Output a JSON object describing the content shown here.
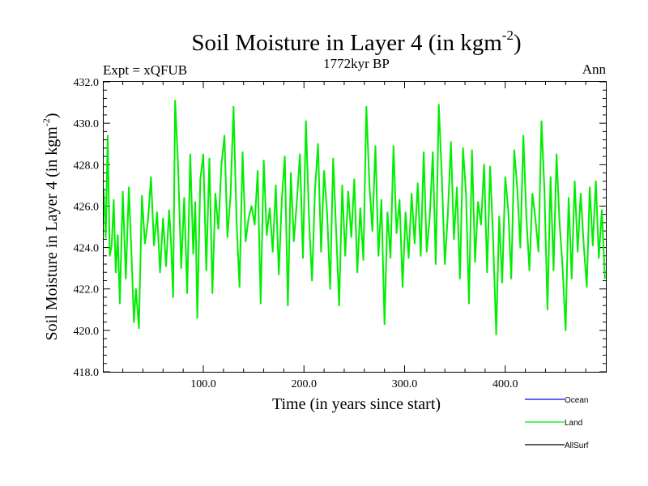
{
  "chart_data": {
    "type": "line",
    "title": "Soil Moisture in Layer 4 (in kgm",
    "title_sup": "-2",
    "title_close": ")",
    "subtitle_left": "Expt = xQFUB",
    "subtitle_center": "1772kyr BP",
    "subtitle_right": "Ann",
    "xlabel": "Time (in years since start)",
    "ylabel": "Soil Moisture in Layer 4 (in kgm",
    "ylabel_sup": "-2",
    "ylabel_close": ")",
    "xlim": [
      1,
      500
    ],
    "ylim": [
      418,
      432
    ],
    "xticks": [
      100,
      200,
      300,
      400
    ],
    "xtick_labels": [
      "100.0",
      "200.0",
      "300.0",
      "400.0"
    ],
    "yticks": [
      418,
      420,
      422,
      424,
      426,
      428,
      430,
      432
    ],
    "ytick_labels": [
      "418.0",
      "420.0",
      "422.0",
      "424.0",
      "426.0",
      "428.0",
      "430.0",
      "432.0"
    ],
    "legend": {
      "placement": "bottom-right",
      "entries": [
        {
          "name": "Ocean",
          "color": "#0000ff"
        },
        {
          "name": "Land",
          "color": "#00ee00"
        },
        {
          "name": "AllSurf",
          "color": "#000000"
        }
      ]
    },
    "series": [
      {
        "name": "Land",
        "color": "#00ee00",
        "x": [
          1,
          3,
          5,
          7,
          9,
          11,
          13,
          15,
          17,
          20,
          23,
          26,
          29,
          31,
          33,
          36,
          39,
          42,
          45,
          48,
          51,
          54,
          57,
          60,
          63,
          66,
          68,
          70,
          72,
          75,
          78,
          81,
          84,
          87,
          90,
          92,
          94,
          97,
          100,
          103,
          106,
          109,
          112,
          115,
          118,
          121,
          124,
          127,
          130,
          133,
          136,
          139,
          142,
          145,
          148,
          151,
          154,
          157,
          160,
          163,
          166,
          169,
          172,
          175,
          178,
          181,
          184,
          187,
          190,
          193,
          196,
          199,
          202,
          205,
          208,
          211,
          214,
          217,
          220,
          223,
          226,
          229,
          232,
          235,
          238,
          241,
          244,
          247,
          250,
          253,
          256,
          259,
          262,
          265,
          268,
          271,
          274,
          277,
          280,
          283,
          286,
          289,
          292,
          295,
          298,
          301,
          304,
          307,
          310,
          313,
          316,
          319,
          322,
          325,
          328,
          331,
          334,
          337,
          340,
          343,
          346,
          349,
          352,
          355,
          358,
          361,
          364,
          367,
          370,
          373,
          376,
          379,
          382,
          385,
          388,
          391,
          394,
          397,
          400,
          403,
          406,
          409,
          412,
          415,
          418,
          421,
          424,
          427,
          430,
          433,
          436,
          439,
          442,
          445,
          448,
          451,
          454,
          457,
          460,
          463,
          466,
          469,
          472,
          475,
          478,
          481,
          484,
          487,
          490,
          493,
          496,
          499
        ],
        "values": [
          426.8,
          424.5,
          429.4,
          423.6,
          424.1,
          426.3,
          422.8,
          424.6,
          421.3,
          426.7,
          422.5,
          426.9,
          423.2,
          420.4,
          422.0,
          420.1,
          426.5,
          424.2,
          425.3,
          427.4,
          424.1,
          425.7,
          422.8,
          425.4,
          423.1,
          425.8,
          424.2,
          421.6,
          431.1,
          427.9,
          423.0,
          426.4,
          421.8,
          428.5,
          423.7,
          426.2,
          420.6,
          427.3,
          428.5,
          422.9,
          428.3,
          421.8,
          426.6,
          424.9,
          428.0,
          429.4,
          424.5,
          426.5,
          430.8,
          425.3,
          422.1,
          428.6,
          424.3,
          425.4,
          426.0,
          425.1,
          427.7,
          421.3,
          428.2,
          424.6,
          425.9,
          423.8,
          427.0,
          422.7,
          426.3,
          428.4,
          421.2,
          427.6,
          424.3,
          426.3,
          428.5,
          423.5,
          430.1,
          425.4,
          422.4,
          426.8,
          429.0,
          423.8,
          427.7,
          425.7,
          422.0,
          428.3,
          424.8,
          421.2,
          427.0,
          423.6,
          426.7,
          424.5,
          427.3,
          422.8,
          425.9,
          423.4,
          430.8,
          427.1,
          424.8,
          428.9,
          423.6,
          426.3,
          420.3,
          425.7,
          423.5,
          428.9,
          424.7,
          426.3,
          422.1,
          425.7,
          423.5,
          426.6,
          424.2,
          427.1,
          423.6,
          428.6,
          423.8,
          425.5,
          428.6,
          423.2,
          430.9,
          427.4,
          423.2,
          425.6,
          429.1,
          424.4,
          426.9,
          422.5,
          428.8,
          426.6,
          421.3,
          428.7,
          423.3,
          426.2,
          425.1,
          428.0,
          422.8,
          427.9,
          424.4,
          419.8,
          425.5,
          422.3,
          427.4,
          425.8,
          422.5,
          428.7,
          426.8,
          424.0,
          429.4,
          425.5,
          422.9,
          426.6,
          425.4,
          423.8,
          430.1,
          426.7,
          421.0,
          427.4,
          422.9,
          428.5,
          425.2,
          423.0,
          420.0,
          426.4,
          422.5,
          427.2,
          423.8,
          426.6,
          424.1,
          422.1,
          426.9,
          424.1,
          427.2,
          423.5,
          425.8,
          422.5
        ]
      }
    ]
  }
}
